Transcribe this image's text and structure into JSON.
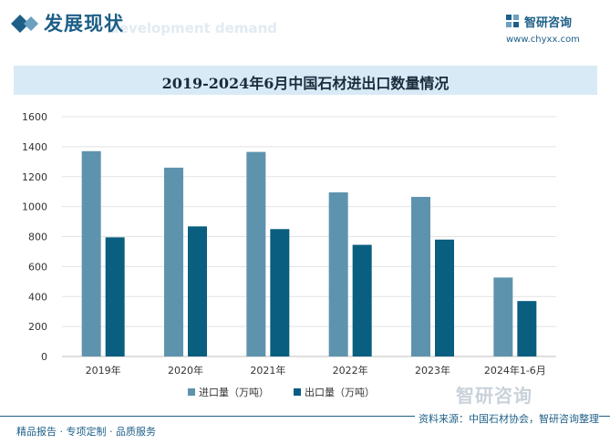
{
  "header": {
    "title": "发展现状",
    "subtitle": "development demand",
    "brand_name": "智研咨询",
    "brand_url": "www.chyxx.com"
  },
  "chart_data": {
    "type": "bar",
    "title": "2019-2024年6月中国石材进出口数量情况",
    "categories": [
      "2019年",
      "2020年",
      "2021年",
      "2022年",
      "2023年",
      "2024年1-6月"
    ],
    "series": [
      {
        "name": "进口量（万吨）",
        "values": [
          1370,
          1260,
          1365,
          1095,
          1065,
          527
        ],
        "color": "#5e93ae"
      },
      {
        "name": "出口量（万吨）",
        "values": [
          795,
          868,
          850,
          745,
          780,
          370
        ],
        "color": "#0a5e7f"
      }
    ],
    "ylim": [
      0,
      1600
    ],
    "yticks": [
      0,
      200,
      400,
      600,
      800,
      1000,
      1200,
      1400,
      1600
    ],
    "xlabel": "",
    "ylabel": "",
    "grid": true,
    "legend": "bottom"
  },
  "footer": {
    "left": "精品报告 · 专项定制 · 品质服务",
    "source": "资料来源：中国石材协会，智研咨询整理",
    "watermark": "智研咨询"
  }
}
